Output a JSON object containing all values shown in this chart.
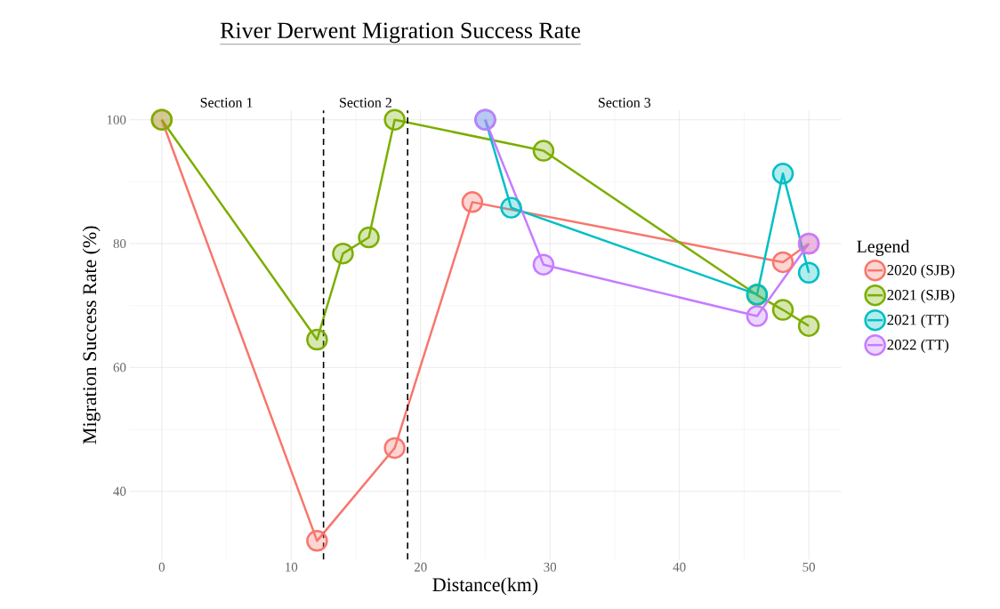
{
  "chart_data": {
    "type": "line",
    "title": "River Derwent Migration Success Rate",
    "xlabel": "Distance(km)",
    "ylabel": "Migration Success Rate (%)",
    "legend_title": "Legend",
    "xlim": [
      -2.5,
      52.5
    ],
    "ylim": [
      29,
      101.5
    ],
    "xticks": [
      0,
      10,
      20,
      30,
      40,
      50
    ],
    "yticks": [
      40,
      60,
      80,
      100
    ],
    "grid": true,
    "legend": "right",
    "marker": "circle",
    "line_style": "solid",
    "series": [
      {
        "name": "2020 (SJB)",
        "color": "#f8766d",
        "x": [
          0,
          12,
          18,
          24,
          48,
          50
        ],
        "values": [
          100,
          32,
          47,
          86.7,
          77,
          80
        ]
      },
      {
        "name": "2021 (SJB)",
        "color": "#7cae00",
        "x": [
          0,
          12,
          14,
          16,
          18,
          29.5,
          46,
          48,
          50
        ],
        "values": [
          100,
          64.5,
          78.4,
          81,
          100,
          95,
          71.7,
          69.3,
          66.7
        ]
      },
      {
        "name": "2021 (TT)",
        "color": "#00bfc4",
        "x": [
          25,
          27,
          46,
          48,
          50
        ],
        "values": [
          100,
          85.8,
          71.8,
          91.3,
          75.3
        ]
      },
      {
        "name": "2022 (TT)",
        "color": "#c77cff",
        "x": [
          25,
          29.5,
          46,
          50
        ],
        "values": [
          100,
          76.6,
          68.3,
          80
        ]
      }
    ],
    "ref_lines": [
      {
        "axis": "x",
        "value": 12.5,
        "color": "#000000",
        "line_style": "dashed"
      },
      {
        "axis": "x",
        "value": 19,
        "color": "#000000",
        "line_style": "dashed"
      }
    ],
    "annotations": [
      "Section 1",
      "Section 2",
      "Section 3"
    ]
  }
}
